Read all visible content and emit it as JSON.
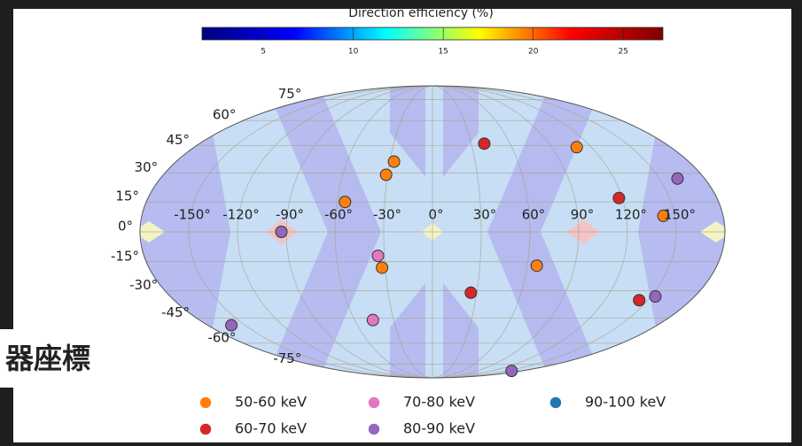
{
  "slide_text": "器座標",
  "chart_data": {
    "type": "scatter",
    "projection": "mollweide",
    "colorbar": {
      "title": "Direction efficiency (%)",
      "lim": [
        1.6,
        27.2
      ],
      "ticks": [
        5,
        10,
        15,
        20,
        25
      ],
      "colormap": [
        "#00007f",
        "#0000ff",
        "#00ffff",
        "#ffff00",
        "#ff0000",
        "#7f0000"
      ]
    },
    "xlim": [
      -180,
      180
    ],
    "ylim": [
      -90,
      90
    ],
    "xticks": [
      {
        "value": -150,
        "label": "-150°"
      },
      {
        "value": -120,
        "label": "-120°"
      },
      {
        "value": -90,
        "label": "-90°"
      },
      {
        "value": -60,
        "label": "-60°"
      },
      {
        "value": -30,
        "label": "-30°"
      },
      {
        "value": 0,
        "label": "0°"
      },
      {
        "value": 30,
        "label": "30°"
      },
      {
        "value": 60,
        "label": "60°"
      },
      {
        "value": 90,
        "label": "90°"
      },
      {
        "value": 120,
        "label": "120°"
      },
      {
        "value": 150,
        "label": "150°"
      }
    ],
    "yticks": [
      {
        "value": -75,
        "label": "-75°"
      },
      {
        "value": -60,
        "label": "-60°"
      },
      {
        "value": -45,
        "label": "-45°"
      },
      {
        "value": -30,
        "label": "-30°"
      },
      {
        "value": -15,
        "label": "-15°"
      },
      {
        "value": 0,
        "label": "0°"
      },
      {
        "value": 15,
        "label": "15°"
      },
      {
        "value": 30,
        "label": "30°"
      },
      {
        "value": 45,
        "label": "45°"
      },
      {
        "value": 60,
        "label": "60°"
      },
      {
        "value": 75,
        "label": "75°"
      }
    ],
    "grid": true,
    "series": [
      {
        "name": "50-60 keV",
        "color": "#ff7f0e",
        "x": [
          -27,
          -31,
          -55,
          -32,
          66,
          109,
          143
        ],
        "values": [
          36,
          29,
          15,
          -18,
          -17,
          44,
          8
        ]
      },
      {
        "name": "60-70 keV",
        "color": "#d62728",
        "x": [
          40,
          118,
          26,
          144
        ],
        "values": [
          46,
          17,
          -31,
          -35
        ]
      },
      {
        "name": "70-80 keV",
        "color": "#e377c2",
        "x": [
          -34,
          -46
        ],
        "values": [
          -12,
          -46
        ]
      },
      {
        "name": "80-90 keV",
        "color": "#9467bd",
        "x": [
          -93,
          -161,
          162,
          153,
          160
        ],
        "values": [
          0,
          -49,
          27,
          -33,
          -81
        ]
      },
      {
        "name": "90-100 keV",
        "color": "#1f77b4",
        "x": [],
        "values": []
      }
    ]
  }
}
